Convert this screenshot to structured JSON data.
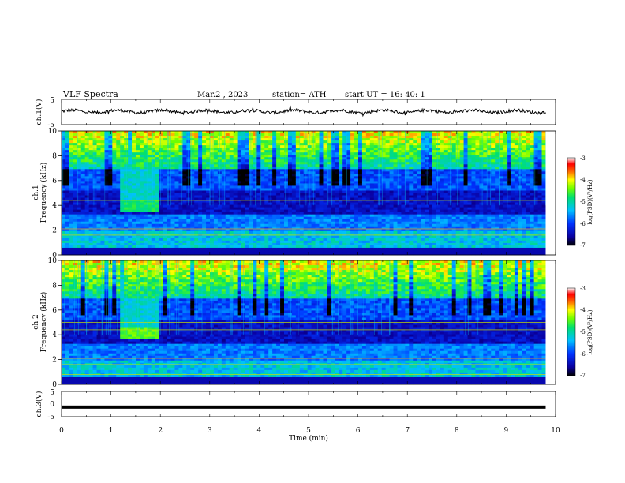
{
  "header": {
    "title": "VLF  Spectra",
    "date": "Mar.2  , 2023",
    "station": "station= ATH",
    "start": "start  UT  =    16: 40: 1"
  },
  "chart_data": [
    {
      "type": "line",
      "panel": "ch1-waveform",
      "ylabel": "ch.1(V)",
      "ylim": [
        -5,
        5
      ],
      "yticks": [
        "5",
        "-5"
      ],
      "xlim": [
        0,
        10
      ],
      "series": [
        {
          "x": [
            0,
            9.8
          ],
          "values": [
            0.2,
            0.2
          ]
        }
      ],
      "line_color": "#000000"
    },
    {
      "type": "heatmap",
      "panel": "ch1-spectrogram",
      "ylabel": "Frequency (kHz)",
      "channel_label": "ch.1",
      "ylim": [
        0,
        10
      ],
      "yticks": [
        "0",
        "2",
        "4",
        "6",
        "8",
        "10"
      ],
      "xlim": [
        0,
        10
      ],
      "data_xmax": 9.8,
      "features": [
        {
          "t_start": 1.15,
          "t_end": 1.98,
          "f_low": 3.5,
          "f_high": 4.5,
          "log_psd": -4.8
        }
      ],
      "colorbar": {
        "label": "log(PSD)(V²/Hz)",
        "ticks": [
          "-3",
          "-4",
          "-5",
          "-6",
          "-7"
        ],
        "range": [
          -7,
          -3
        ]
      }
    },
    {
      "type": "heatmap",
      "panel": "ch2-spectrogram",
      "ylabel": "Frequency (kHz)",
      "channel_label": "ch.2",
      "ylim": [
        0,
        10
      ],
      "yticks": [
        "0",
        "2",
        "4",
        "6",
        "8",
        "10"
      ],
      "xlim": [
        0,
        10
      ],
      "data_xmax": 9.8,
      "features": [
        {
          "t_start": 1.15,
          "t_end": 1.98,
          "f_low": 3.6,
          "f_high": 4.7,
          "log_psd": -4.5
        }
      ],
      "colorbar": {
        "label": "log(PSD)(V²/Hz)",
        "ticks": [
          "-3",
          "-4",
          "-5",
          "-6",
          "-7"
        ],
        "range": [
          -7,
          -3
        ]
      }
    },
    {
      "type": "line",
      "panel": "ch3-waveform",
      "ylabel": "ch.3(V)",
      "ylim": [
        -5,
        5
      ],
      "yticks": [
        "5",
        "0",
        "-5"
      ],
      "xlim": [
        0,
        10
      ],
      "xticks": [
        "0",
        "1",
        "2",
        "3",
        "4",
        "5",
        "6",
        "7",
        "8",
        "9",
        "10"
      ],
      "xlabel": "Time  (min)",
      "series": [
        {
          "x": [
            0,
            9.8
          ],
          "values": [
            -1.2,
            -1.2
          ]
        }
      ],
      "line_color": "#000000"
    }
  ]
}
